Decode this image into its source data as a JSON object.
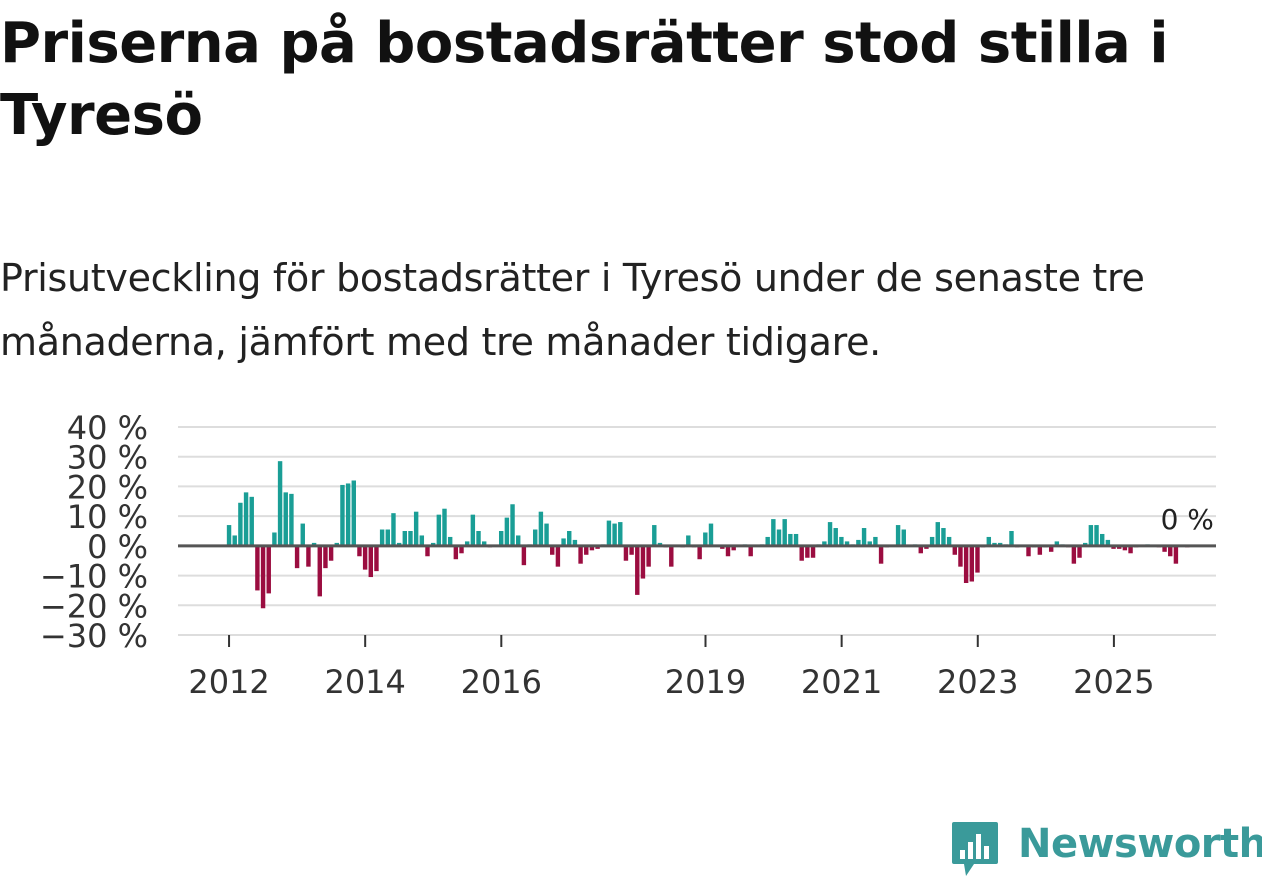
{
  "title": "Priserna på bostadsrätter stod stilla i Tyresö",
  "subtitle": "Prisutveckling för bostadsrätter i Tyresö under de senaste tre månaderna, jämfört med tre månader tidigare.",
  "brand": {
    "name": "Newsworthy",
    "color": "#3a9a9a"
  },
  "colors": {
    "positive": "#1a9e96",
    "negative": "#9b0d40",
    "zero_line": "#555555",
    "grid": "#dddddd"
  },
  "chart_data": {
    "type": "bar",
    "title": "Priserna på bostadsrätter stod stilla i Tyresö",
    "xlabel": "",
    "ylabel": "",
    "ylim": [
      -30,
      40
    ],
    "yticks": [
      40,
      30,
      20,
      10,
      0,
      -10,
      -20,
      -30
    ],
    "ytick_labels": [
      "40 %",
      "30 %",
      "20 %",
      "10 %",
      "0 %",
      "−10 %",
      "−20 %",
      "−30 %"
    ],
    "xlim": [
      2011.25,
      2026.5
    ],
    "xticks": [
      2012,
      2014,
      2016,
      2019,
      2021,
      2023,
      2025
    ],
    "xtick_labels": [
      "2012",
      "2014",
      "2016",
      "2019",
      "2021",
      "2023",
      "2025"
    ],
    "last_value_label": "0 %",
    "start": 2012.0,
    "step": 0.0833,
    "values": [
      7,
      3.5,
      14.5,
      18,
      16.5,
      -15,
      -21,
      -16,
      4.5,
      28.5,
      18,
      17.5,
      -7.5,
      7.5,
      -7,
      1,
      -17,
      -7.5,
      -5,
      1,
      20.5,
      21,
      22,
      -3.5,
      -8,
      -10.5,
      -8.5,
      5.5,
      5.5,
      11,
      1,
      5,
      5,
      11.5,
      3.5,
      -3.5,
      1,
      10.5,
      12.5,
      3,
      -4.5,
      -2.5,
      1.5,
      10.5,
      5,
      1.5,
      -0.5,
      0,
      5,
      9.5,
      14,
      3.5,
      -6.5,
      0.5,
      5.5,
      11.5,
      7.5,
      -3,
      -7,
      2.5,
      5,
      2,
      -6,
      -3,
      -1.5,
      -1,
      0.5,
      8.5,
      7.5,
      8,
      -5,
      -3,
      -16.5,
      -11,
      -7,
      7,
      1,
      -0.5,
      -7,
      0,
      -0.5,
      3.5,
      -0.5,
      -4.5,
      4.5,
      7.5,
      0,
      -1,
      -3.5,
      -1.5,
      0,
      0.5,
      -3.5,
      0,
      0.5,
      3,
      9,
      5.5,
      9,
      4,
      4,
      -5,
      -4,
      -4,
      0.5,
      1.5,
      8,
      6,
      3,
      1.5,
      0.5,
      2,
      6,
      1.5,
      3,
      -6,
      -0.5,
      0,
      7,
      5.5,
      0,
      0.5,
      -2.5,
      -1,
      3,
      8,
      6,
      3,
      -3,
      -7,
      -12.5,
      -12,
      -9,
      -0.5,
      3,
      1,
      1,
      0.5,
      5,
      -0.5,
      0,
      -3.5,
      -0.5,
      -3,
      -0.5,
      -2,
      1.5,
      0.5,
      -0.5,
      -6,
      -4,
      1,
      7,
      7,
      4,
      2,
      -1,
      -1,
      -1.5,
      -2.5,
      -0.5,
      0,
      0.5,
      0,
      -0.5,
      -2,
      -3.5,
      -6,
      0,
      -0.5
    ]
  }
}
